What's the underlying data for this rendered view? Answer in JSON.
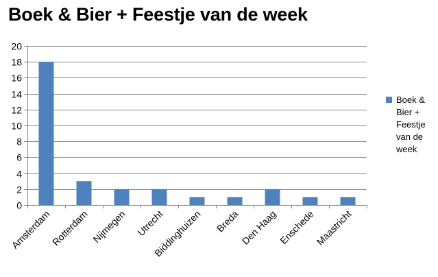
{
  "chart_data": {
    "type": "bar",
    "title": "Boek & Bier + Feestje van de week",
    "categories": [
      "Amsterdam",
      "Rotterdam",
      "Nijmegen",
      "Utrecht",
      "Biddinghuizen",
      "Breda",
      "Den Haag",
      "Enschede",
      "Maastricht"
    ],
    "series": [
      {
        "name": "Boek & Bier + Feestje van de week",
        "values": [
          18,
          3,
          2,
          2,
          1,
          1,
          2,
          1,
          1
        ],
        "color": "#4F81BD"
      }
    ],
    "ylim": [
      0,
      20
    ],
    "yticks": [
      0,
      2,
      4,
      6,
      8,
      10,
      12,
      14,
      16,
      18,
      20
    ],
    "grid": true,
    "legend_position": "right",
    "xlabel": "",
    "ylabel": ""
  }
}
